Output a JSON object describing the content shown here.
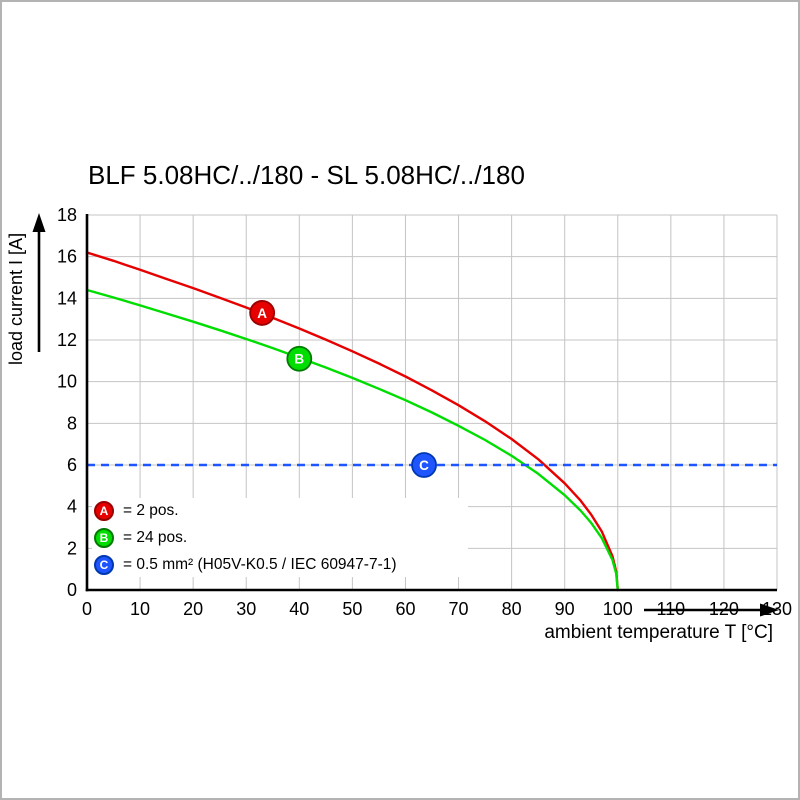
{
  "chart_data": {
    "type": "line",
    "title": "BLF 5.08HC/../180 - SL 5.08HC/../180",
    "xlabel": "ambient temperature T [°C]",
    "ylabel": "load current I [A]",
    "xlim": [
      0,
      130
    ],
    "ylim": [
      0,
      18
    ],
    "xticks": [
      0,
      10,
      20,
      30,
      40,
      50,
      60,
      70,
      80,
      90,
      100,
      110,
      120,
      130
    ],
    "yticks": [
      0,
      2,
      4,
      6,
      8,
      10,
      12,
      14,
      16,
      18
    ],
    "grid": true,
    "grid_color": "#c4c4c4",
    "axis_color": "#000000",
    "legend_position": "bottom-left-inside",
    "series": [
      {
        "id": "A",
        "legend": "= 2 pos.",
        "color": "#e60000",
        "edge": "#990000",
        "style": "curve",
        "marker": {
          "x": 33,
          "y": 13.3
        },
        "points": [
          [
            0,
            16.2
          ],
          [
            5,
            15.8
          ],
          [
            10,
            15.37
          ],
          [
            15,
            14.93
          ],
          [
            20,
            14.49
          ],
          [
            25,
            14.03
          ],
          [
            30,
            13.56
          ],
          [
            35,
            13.06
          ],
          [
            40,
            12.55
          ],
          [
            45,
            12.02
          ],
          [
            50,
            11.46
          ],
          [
            55,
            10.87
          ],
          [
            60,
            10.25
          ],
          [
            65,
            9.58
          ],
          [
            70,
            8.87
          ],
          [
            75,
            8.1
          ],
          [
            80,
            7.25
          ],
          [
            85,
            6.28
          ],
          [
            90,
            5.12
          ],
          [
            93,
            4.29
          ],
          [
            95,
            3.62
          ],
          [
            97,
            2.81
          ],
          [
            99,
            1.62
          ],
          [
            99.7,
            0.89
          ],
          [
            100,
            0
          ]
        ]
      },
      {
        "id": "B",
        "legend": "= 24 pos.",
        "color": "#00dd00",
        "edge": "#007a00",
        "style": "curve",
        "marker": {
          "x": 40,
          "y": 11.1
        },
        "points": [
          [
            0,
            14.4
          ],
          [
            5,
            14.04
          ],
          [
            10,
            13.66
          ],
          [
            15,
            13.27
          ],
          [
            20,
            12.88
          ],
          [
            25,
            12.47
          ],
          [
            30,
            12.05
          ],
          [
            35,
            11.61
          ],
          [
            40,
            11.15
          ],
          [
            45,
            10.68
          ],
          [
            50,
            10.18
          ],
          [
            55,
            9.66
          ],
          [
            60,
            9.11
          ],
          [
            65,
            8.52
          ],
          [
            70,
            7.88
          ],
          [
            75,
            7.2
          ],
          [
            80,
            6.44
          ],
          [
            85,
            5.58
          ],
          [
            90,
            4.55
          ],
          [
            93,
            3.81
          ],
          [
            95,
            3.22
          ],
          [
            97,
            2.49
          ],
          [
            99,
            1.44
          ],
          [
            99.7,
            0.79
          ],
          [
            100,
            0
          ]
        ]
      },
      {
        "id": "C",
        "legend": "= 0.5 mm² (H05V-K0.5 / IEC 60947-7-1)",
        "color": "#1f55ff",
        "edge": "#0038b0",
        "style": "hline",
        "y": 6,
        "dashed": true,
        "marker": {
          "x": 63.5,
          "y": 6
        }
      }
    ]
  }
}
